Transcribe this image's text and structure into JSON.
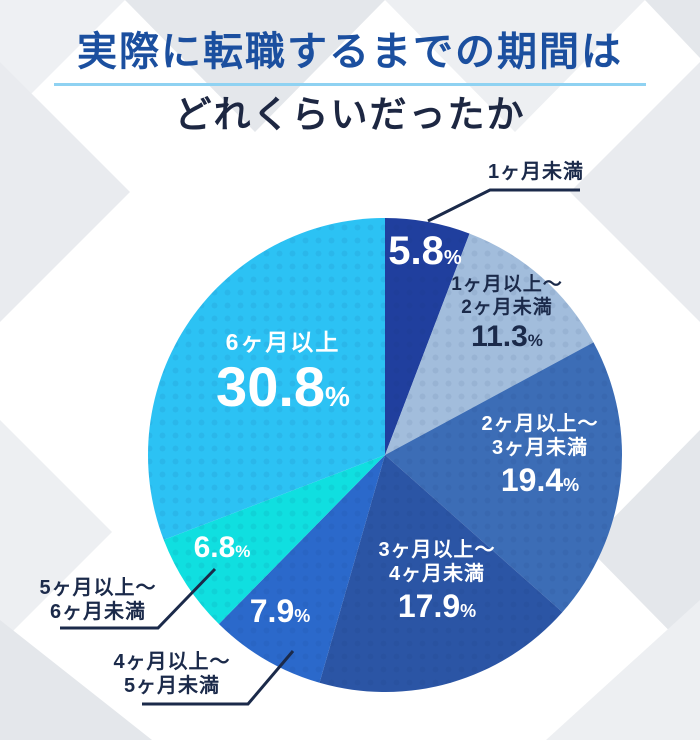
{
  "title": {
    "line1": "実際に転職するまでの期間は",
    "line2": "どれくらいだったか"
  },
  "percent_sign": "%",
  "colors": {
    "title_blue": "#1b4f9f",
    "title_navy": "#1d2742",
    "underline_blue": "#8fd2f2",
    "label_navy": "#1b2a4a",
    "white": "#ffffff"
  },
  "chart_data": {
    "type": "pie",
    "title": "実際に転職するまでの期間はどれくらいだったか",
    "direction": "clockwise",
    "start_angle_deg": 0,
    "unit": "%",
    "legend_position": "none",
    "segments": [
      {
        "label": "1ヶ月未満",
        "name_lines": [
          "1ヶ月未満"
        ],
        "value": 5.8,
        "pct": "5.8",
        "color": "#203f9e",
        "label_style": "outside-callout"
      },
      {
        "label": "1ヶ月以上〜2ヶ月未満",
        "name_lines": [
          "1ヶ月以上〜",
          "2ヶ月未満"
        ],
        "value": 11.3,
        "pct": "11.3",
        "color": "#a2bddc",
        "label_style": "inside-dark-text"
      },
      {
        "label": "2ヶ月以上〜3ヶ月未満",
        "name_lines": [
          "2ヶ月以上〜",
          "3ヶ月未満"
        ],
        "value": 19.4,
        "pct": "19.4",
        "color": "#3c6db6",
        "label_style": "inside-white-text"
      },
      {
        "label": "3ヶ月以上〜4ヶ月未満",
        "name_lines": [
          "3ヶ月以上〜",
          "4ヶ月未満"
        ],
        "value": 17.9,
        "pct": "17.9",
        "color": "#2b55a5",
        "label_style": "inside-white-text"
      },
      {
        "label": "4ヶ月以上〜5ヶ月未満",
        "name_lines": [
          "4ヶ月以上〜",
          "5ヶ月未満"
        ],
        "value": 7.9,
        "pct": "7.9",
        "color": "#2b69cb",
        "label_style": "outside-callout"
      },
      {
        "label": "5ヶ月以上〜6ヶ月未満",
        "name_lines": [
          "5ヶ月以上〜",
          "6ヶ月未満"
        ],
        "value": 6.8,
        "pct": "6.8",
        "color": "#10dfe0",
        "label_style": "outside-callout"
      },
      {
        "label": "6ヶ月以上",
        "name_lines": [
          "6ヶ月以上"
        ],
        "value": 30.8,
        "pct": "30.8",
        "color": "#2cc2f4",
        "label_style": "inside-white-text"
      }
    ]
  }
}
